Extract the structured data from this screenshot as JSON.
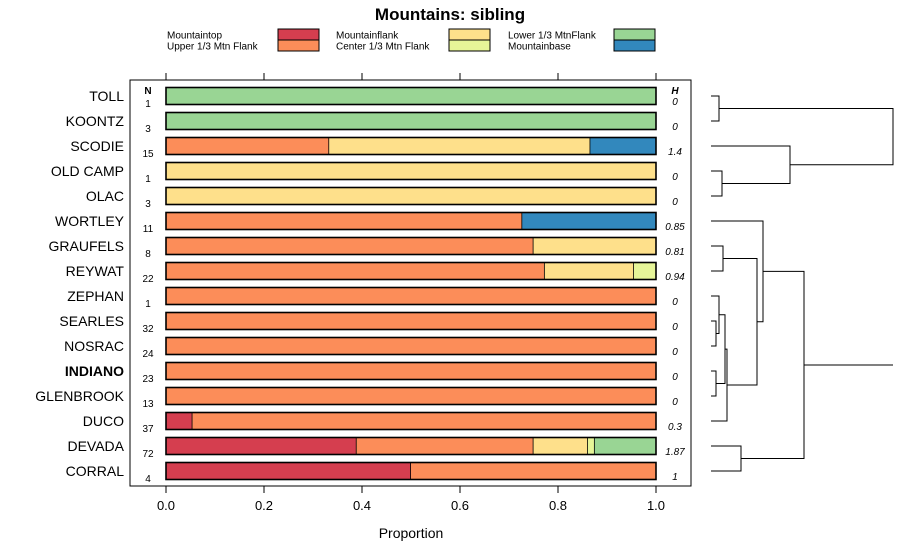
{
  "chart_data": {
    "type": "bar",
    "orientation": "horizontal-stacked",
    "title": "Mountains: sibling",
    "xlabel": "Proportion",
    "ylabel": "",
    "xlim": [
      0,
      1
    ],
    "xticks": [
      "0.0",
      "0.2",
      "0.4",
      "0.6",
      "0.8",
      "1.0"
    ],
    "n_header": "N",
    "h_header": "H",
    "highlighted_category": "INDIANO",
    "legend": [
      {
        "name": "Mountaintop",
        "color": "#d53e4f"
      },
      {
        "name": "Upper 1/3 Mtn Flank",
        "color": "#fc8d59"
      },
      {
        "name": "Mountainflank",
        "color": "#fee08b"
      },
      {
        "name": "Center 1/3 Mtn Flank",
        "color": "#e6f598"
      },
      {
        "name": "Lower 1/3 MtnFlank",
        "color": "#99d594"
      },
      {
        "name": "Mountainbase",
        "color": "#3288bd"
      }
    ],
    "categories": [
      "TOLL",
      "KOONTZ",
      "SCODIE",
      "OLD CAMP",
      "OLAC",
      "WORTLEY",
      "GRAUFELS",
      "REYWAT",
      "ZEPHAN",
      "SEARLES",
      "NOSRAC",
      "INDIANO",
      "GLENBROOK",
      "DUCO",
      "DEVADA",
      "CORRAL"
    ],
    "n": [
      "1",
      "3",
      "15",
      "1",
      "3",
      "11",
      "8",
      "22",
      "1",
      "32",
      "24",
      "23",
      "13",
      "37",
      "72",
      "4"
    ],
    "h": [
      "0",
      "0",
      "1.4",
      "0",
      "0",
      "0.85",
      "0.81",
      "0.94",
      "0",
      "0",
      "0",
      "0",
      "0",
      "0.3",
      "1.87",
      "1"
    ],
    "series": [
      {
        "name": "Mountaintop",
        "values": [
          0,
          0,
          0,
          0,
          0,
          0,
          0,
          0,
          0,
          0,
          0,
          0,
          0,
          0.054,
          0.389,
          0.5
        ]
      },
      {
        "name": "Upper 1/3 Mtn Flank",
        "values": [
          0,
          0,
          0.333,
          0,
          0,
          0.727,
          0.75,
          0.773,
          1,
          1,
          1,
          1,
          1,
          0.946,
          0.361,
          0.5
        ]
      },
      {
        "name": "Mountainflank",
        "values": [
          0,
          0,
          0.533,
          1,
          1,
          0,
          0.25,
          0.182,
          0,
          0,
          0,
          0,
          0,
          0,
          0.111,
          0
        ]
      },
      {
        "name": "Center 1/3 Mtn Flank",
        "values": [
          0,
          0,
          0,
          0,
          0,
          0,
          0,
          0.045,
          0,
          0,
          0,
          0,
          0,
          0,
          0.014,
          0
        ]
      },
      {
        "name": "Lower 1/3 MtnFlank",
        "values": [
          1,
          1,
          0,
          0,
          0,
          0,
          0,
          0,
          0,
          0,
          0,
          0,
          0,
          0,
          0.125,
          0
        ]
      },
      {
        "name": "Mountainbase",
        "values": [
          0,
          0,
          0.134,
          0,
          0,
          0.273,
          0,
          0,
          0,
          0,
          0,
          0,
          0,
          0,
          0,
          0
        ]
      }
    ],
    "dendrogram": {
      "leaf_order": [
        "TOLL",
        "KOONTZ",
        "SCODIE",
        "OLD CAMP",
        "OLAC",
        "WORTLEY",
        "GRAUFELS",
        "REYWAT",
        "ZEPHAN",
        "SEARLES",
        "NOSRAC",
        "INDIANO",
        "GLENBROOK",
        "DUCO",
        "DEVADA",
        "CORRAL"
      ],
      "merges": [
        {
          "a": "TOLL",
          "b": "KOONTZ",
          "height": 0.04
        },
        {
          "a": "OLD CAMP",
          "b": "OLAC",
          "height": 0.04
        },
        {
          "a": "SEARLES",
          "b": "NOSRAC",
          "height": 0.02
        },
        {
          "a": "INDIANO",
          "b": "GLENBROOK",
          "height": 0.02
        },
        {
          "a": "ZEPHAN",
          "b": "(SEARLES,NOSRAC)",
          "height": 0.03
        },
        {
          "a": "(ZEPHAN,SEARLES,NOSRAC)",
          "b": "(INDIANO,GLENBROOK)",
          "height": 0.045
        },
        {
          "a": "(ZEPHAN..GLENBROOK)",
          "b": "DUCO",
          "height": 0.055
        },
        {
          "a": "GRAUFELS",
          "b": "REYWAT",
          "height": 0.04
        },
        {
          "a": "(GRAUFELS,REYWAT)",
          "b": "(ZEPHAN..DUCO)",
          "height": 0.17
        },
        {
          "a": "WORTLEY",
          "b": "(GRAUFELS..DUCO)",
          "height": 0.21
        },
        {
          "a": "SCODIE",
          "b": "(OLD CAMP,OLAC)",
          "height": 0.3
        },
        {
          "a": "(TOLL,KOONTZ)",
          "b": "(SCODIE,OLD CAMP,OLAC)",
          "height": 0.42
        },
        {
          "a": "DEVADA",
          "b": "CORRAL",
          "height": 0.12
        },
        {
          "a": "(WORTLEY..DUCO)",
          "b": "(DEVADA,CORRAL)",
          "height": 0.42
        },
        {
          "a": "(TOLL..OLAC)",
          "b": "(WORTLEY..CORRAL)",
          "height": 0.92
        }
      ]
    }
  }
}
